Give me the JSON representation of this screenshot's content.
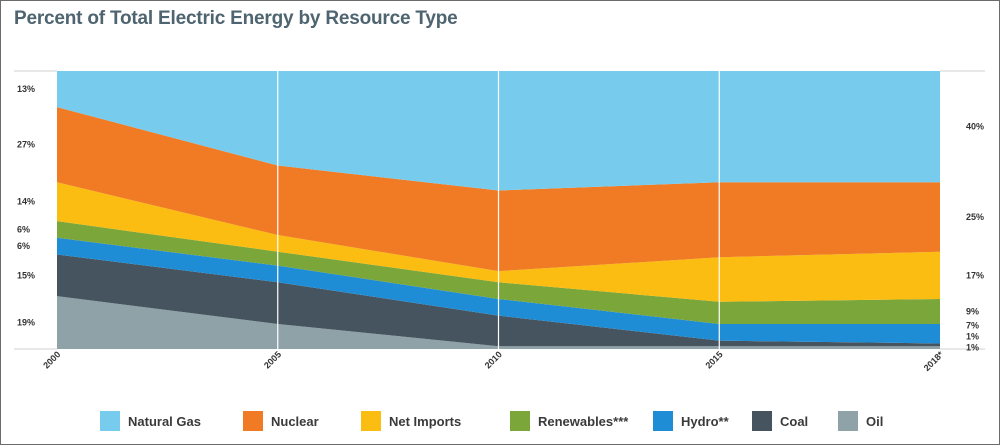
{
  "title": "Percent of Total Electric Energy by Resource Type",
  "chart_data": {
    "type": "area",
    "stacked": true,
    "normalized_percent": true,
    "x": [
      "2000",
      "2005",
      "2010",
      "2015",
      "2018*"
    ],
    "series": [
      {
        "name": "Oil",
        "color": "#8fa2a8",
        "values": [
          19,
          9,
          1,
          1,
          1
        ]
      },
      {
        "name": "Coal",
        "color": "#46545f",
        "values": [
          15,
          15,
          11,
          2,
          1
        ]
      },
      {
        "name": "Hydro **",
        "color": "#1f8dd6",
        "values": [
          6,
          6,
          6,
          6,
          7
        ]
      },
      {
        "name": "Renewables ***",
        "color": "#7ba63a",
        "values": [
          6,
          5,
          6,
          8,
          9
        ]
      },
      {
        "name": "Net Imports",
        "color": "#fbbd12",
        "values": [
          14,
          6,
          4,
          16,
          17
        ]
      },
      {
        "name": "Nuclear",
        "color": "#f07b24",
        "values": [
          27,
          25,
          29,
          27,
          25
        ]
      },
      {
        "name": "Natural Gas",
        "color": "#77cbec",
        "values": [
          13,
          34,
          43,
          40,
          40
        ]
      }
    ],
    "left_labels": [
      "13%",
      "27%",
      "14%",
      "6%",
      "6%",
      "15%",
      "19%"
    ],
    "right_labels": [
      "40%",
      "25%",
      "17%",
      "9%",
      "7%",
      "1%",
      "1%"
    ],
    "gridlines": "vertical",
    "legend_position": "bottom"
  },
  "legend": [
    {
      "label": "Natural Gas",
      "color": "#77cbec"
    },
    {
      "label": "Nuclear",
      "color": "#f07b24"
    },
    {
      "label": "Net Imports",
      "color": "#fbbd12"
    },
    {
      "label": "Renewables***",
      "color": "#7ba63a"
    },
    {
      "label": "Hydro**",
      "color": "#1f8dd6"
    },
    {
      "label": "Coal",
      "color": "#46545f"
    },
    {
      "label": "Oil",
      "color": "#8fa2a8"
    }
  ]
}
